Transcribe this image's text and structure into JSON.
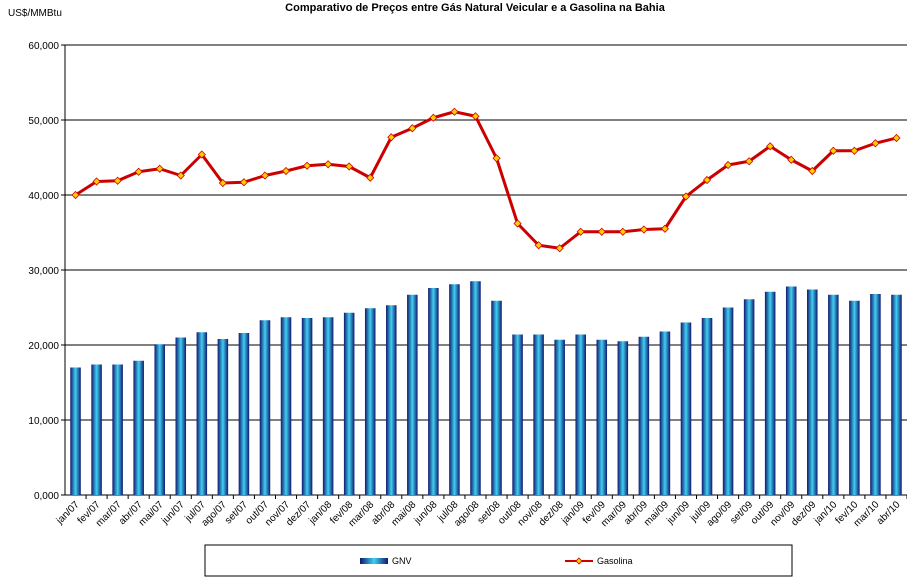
{
  "chart_data": {
    "type": "bar-line",
    "title": "Comparativo de Preços entre Gás Natural Veicular e a Gasolina na Bahia",
    "y_label": "US$/MMBtu",
    "categories": [
      "jan/07",
      "fev/07",
      "mar/07",
      "abr/07",
      "mai/07",
      "jun/07",
      "jul/07",
      "ago/07",
      "set/07",
      "out/07",
      "nov/07",
      "dez/07",
      "jan/08",
      "fev/08",
      "mar/08",
      "abr/08",
      "mai/08",
      "jun/08",
      "jul/08",
      "ago/08",
      "set/08",
      "out/08",
      "nov/08",
      "dez/08",
      "jan/09",
      "fev/09",
      "mar/09",
      "abr/09",
      "mai/09",
      "jun/09",
      "jul/09",
      "ago/09",
      "set/09",
      "out/09",
      "nov/09",
      "dez/09",
      "jan/10",
      "fev/10",
      "mar/10",
      "abr/10"
    ],
    "series": [
      {
        "name": "GNV",
        "type": "bar",
        "color": "#3fd0f0",
        "values": [
          17.0,
          17.4,
          17.4,
          17.9,
          20.1,
          21.0,
          21.7,
          20.8,
          21.6,
          23.3,
          23.7,
          23.6,
          23.7,
          24.3,
          24.9,
          25.3,
          26.7,
          27.6,
          28.1,
          28.5,
          25.9,
          21.4,
          21.4,
          20.7,
          21.4,
          20.7,
          20.5,
          21.1,
          21.8,
          23.0,
          23.6,
          25.0,
          26.1,
          27.1,
          27.8,
          27.4,
          26.7,
          25.9,
          26.8,
          26.7
        ]
      },
      {
        "name": "Gasolina",
        "type": "line",
        "color": "#cc0000",
        "marker_color": "#ffcc00",
        "values": [
          40.0,
          41.8,
          41.9,
          43.1,
          43.5,
          42.6,
          45.4,
          41.6,
          41.7,
          42.6,
          43.2,
          43.9,
          44.1,
          43.8,
          42.3,
          47.7,
          48.9,
          50.3,
          51.1,
          50.5,
          44.9,
          36.2,
          33.3,
          32.9,
          35.1,
          35.1,
          35.1,
          35.4,
          35.5,
          39.8,
          42.0,
          44.0,
          44.5,
          46.5,
          44.7,
          43.2,
          45.9,
          45.9,
          46.9,
          47.6
        ]
      }
    ],
    "ylim": [
      0,
      60
    ],
    "yticks": [
      {
        "value": 0,
        "label": "0,000"
      },
      {
        "value": 10,
        "label": "10,000"
      },
      {
        "value": 20,
        "label": "20,000"
      },
      {
        "value": 30,
        "label": "30,000"
      },
      {
        "value": 40,
        "label": "40,000"
      },
      {
        "value": 50,
        "label": "50,000"
      },
      {
        "value": 60,
        "label": "60,000"
      }
    ],
    "grid": true
  }
}
